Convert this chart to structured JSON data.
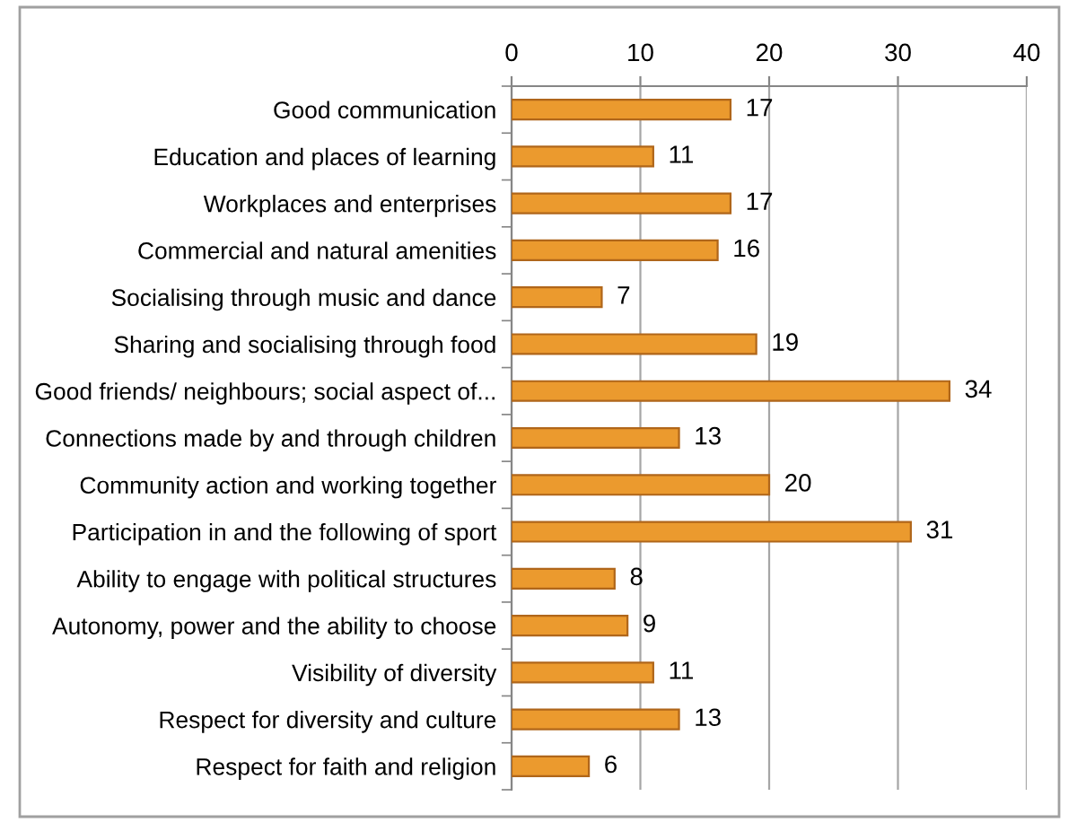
{
  "chart_data": {
    "type": "bar",
    "orientation": "horizontal",
    "categories": [
      "Good communication",
      "Education and places of learning",
      "Workplaces and enterprises",
      "Commercial and natural amenities",
      "Socialising through music and dance",
      "Sharing and socialising through food",
      "Good friends/ neighbours; social aspect of...",
      "Connections made by and through children",
      "Community action and working together",
      "Participation in and the following of sport",
      "Ability to engage with political structures",
      "Autonomy, power and the ability to choose",
      "Visibility of diversity",
      "Respect for diversity and culture",
      "Respect for faith and religion"
    ],
    "values": [
      17,
      11,
      17,
      16,
      7,
      19,
      34,
      13,
      20,
      31,
      8,
      9,
      11,
      13,
      6
    ],
    "color": "#eb9a2e",
    "xlim": [
      0,
      40
    ],
    "xticks": [
      0,
      10,
      20,
      30,
      40
    ],
    "grid": "x",
    "data_labels": true
  }
}
